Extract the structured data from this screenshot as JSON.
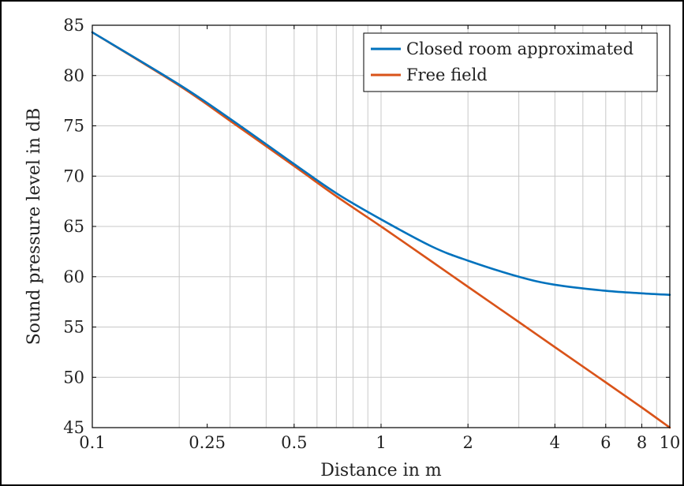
{
  "chart_data": {
    "type": "line",
    "title": "",
    "xlabel": "Distance in m",
    "ylabel": "Sound pressure level in dB",
    "xscale": "log",
    "xlim": [
      0.1,
      10
    ],
    "ylim": [
      45,
      85
    ],
    "x_ticks": [
      0.1,
      0.25,
      0.5,
      1,
      2,
      4,
      6,
      8,
      10
    ],
    "x_tick_labels": [
      "0.1",
      "0.25",
      "0.5",
      "1",
      "2",
      "4",
      "6",
      "8",
      "10"
    ],
    "y_ticks": [
      45,
      50,
      55,
      60,
      65,
      70,
      75,
      80,
      85
    ],
    "y_tick_labels": [
      "45",
      "50",
      "55",
      "60",
      "65",
      "70",
      "75",
      "80",
      "85"
    ],
    "grid": true,
    "legend_position": "top-right",
    "colors": {
      "closed_room": "#0072bd",
      "free_field": "#d95319"
    },
    "series": [
      {
        "name": "Closed room approximated",
        "color": "#0072bd",
        "x": [
          0.1,
          0.2,
          0.3,
          0.5,
          0.7,
          1,
          1.5,
          2,
          3,
          4,
          6,
          8,
          10
        ],
        "y": [
          84.3,
          79.1,
          75.7,
          71.2,
          68.3,
          65.7,
          63.0,
          61.6,
          60.0,
          59.2,
          58.6,
          58.35,
          58.2
        ]
      },
      {
        "name": "Free field",
        "color": "#d95319",
        "x": [
          0.1,
          0.2,
          0.3,
          0.5,
          0.7,
          1,
          1.5,
          2,
          3,
          4,
          6,
          8,
          10
        ],
        "y": [
          84.3,
          79.0,
          75.5,
          71.0,
          68.0,
          65.0,
          61.5,
          59.0,
          55.5,
          53.0,
          49.5,
          47.0,
          45.0
        ]
      }
    ]
  }
}
